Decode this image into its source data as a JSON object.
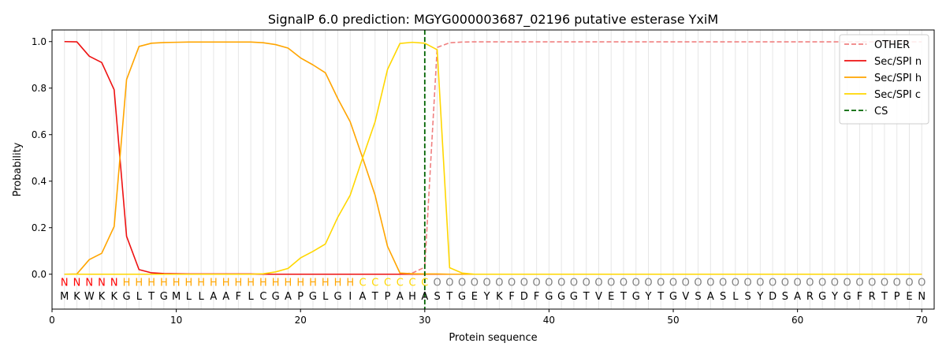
{
  "chart_data": {
    "type": "line",
    "title": "SignalP 6.0 prediction: MGYG000003687_02196 putative esterase YxiM",
    "xlabel": "Protein sequence",
    "ylabel": "Probability",
    "xlim": [
      0,
      71
    ],
    "ylim": [
      -0.15,
      1.05
    ],
    "x_ticks": [
      0,
      10,
      20,
      30,
      40,
      50,
      60,
      70
    ],
    "y_ticks": [
      0.0,
      0.2,
      0.4,
      0.6,
      0.8,
      1.0
    ],
    "x_tick_labels": [
      "0",
      "10",
      "20",
      "30",
      "40",
      "50",
      "60",
      "70"
    ],
    "y_tick_labels": [
      "0.0",
      "0.2",
      "0.4",
      "0.6",
      "0.8",
      "1.0"
    ],
    "legend_position": "upper right",
    "vertical_grid": true,
    "sequence": [
      "M",
      "K",
      "W",
      "K",
      "K",
      "G",
      "L",
      "T",
      "G",
      "M",
      "L",
      "L",
      "A",
      "A",
      "F",
      "L",
      "C",
      "G",
      "A",
      "P",
      "G",
      "L",
      "G",
      "I",
      "A",
      "T",
      "P",
      "A",
      "H",
      "A",
      "S",
      "T",
      "G",
      "E",
      "Y",
      "K",
      "F",
      "D",
      "F",
      "G",
      "G",
      "G",
      "T",
      "V",
      "E",
      "T",
      "G",
      "Y",
      "T",
      "G",
      "V",
      "S",
      "A",
      "S",
      "L",
      "S",
      "Y",
      "D",
      "S",
      "A",
      "R",
      "G",
      "Y",
      "G",
      "F",
      "R",
      "T",
      "P",
      "E",
      "N"
    ],
    "region_labels": [
      "N",
      "N",
      "N",
      "N",
      "N",
      "H",
      "H",
      "H",
      "H",
      "H",
      "H",
      "H",
      "H",
      "H",
      "H",
      "H",
      "H",
      "H",
      "H",
      "H",
      "H",
      "H",
      "H",
      "H",
      "C",
      "C",
      "C",
      "C",
      "C",
      "C",
      "O",
      "O",
      "O",
      "O",
      "O",
      "O",
      "O",
      "O",
      "O",
      "O",
      "O",
      "O",
      "O",
      "O",
      "O",
      "O",
      "O",
      "O",
      "O",
      "O",
      "O",
      "O",
      "O",
      "O",
      "O",
      "O",
      "O",
      "O",
      "O",
      "O",
      "O",
      "O",
      "O",
      "O",
      "O",
      "O",
      "O",
      "O",
      "O",
      "O"
    ],
    "region_colors": {
      "N": "#ff0000",
      "H": "#ffa500",
      "C": "#ffd700",
      "O": "#808080"
    },
    "cleavage_site": 30,
    "series": [
      {
        "name": "OTHER",
        "color": "#f08080",
        "dash": true,
        "values": [
          0,
          0,
          0,
          0,
          0,
          0,
          0,
          0,
          0,
          0,
          0,
          0,
          0,
          0,
          0,
          0,
          0,
          0,
          0,
          0,
          0,
          0,
          0,
          0,
          0,
          0,
          0,
          0,
          0.005,
          0.03,
          0.975,
          0.995,
          0.998,
          0.999,
          0.999,
          0.999,
          0.999,
          0.999,
          0.999,
          0.999,
          0.999,
          0.999,
          0.999,
          0.999,
          0.999,
          0.999,
          0.999,
          0.999,
          0.999,
          0.999,
          0.999,
          0.999,
          0.999,
          0.999,
          0.999,
          0.999,
          0.999,
          0.999,
          0.999,
          0.999,
          0.999,
          0.999,
          0.999,
          0.999,
          0.999,
          0.999,
          0.999,
          0.999,
          0.999,
          0.999
        ]
      },
      {
        "name": "Sec/SPI n",
        "color": "#ee1111",
        "dash": false,
        "values": [
          1.0,
          0.999,
          0.937,
          0.91,
          0.793,
          0.163,
          0.02,
          0.006,
          0.003,
          0.002,
          0.001,
          0.001,
          0.001,
          0.001,
          0.001,
          0.001,
          0,
          0,
          0,
          0,
          0,
          0,
          0,
          0,
          0,
          0,
          0,
          0,
          0,
          0,
          0,
          0,
          0,
          0,
          0,
          0,
          0,
          0,
          0,
          0,
          0,
          0,
          0,
          0,
          0,
          0,
          0,
          0,
          0,
          0,
          0,
          0,
          0,
          0,
          0,
          0,
          0,
          0,
          0,
          0,
          0,
          0,
          0,
          0,
          0,
          0,
          0,
          0,
          0,
          0
        ]
      },
      {
        "name": "Sec/SPI h",
        "color": "#ffa500",
        "dash": false,
        "values": [
          0,
          0.001,
          0.063,
          0.09,
          0.205,
          0.837,
          0.979,
          0.993,
          0.996,
          0.997,
          0.998,
          0.998,
          0.998,
          0.998,
          0.998,
          0.998,
          0.995,
          0.987,
          0.972,
          0.93,
          0.9,
          0.866,
          0.755,
          0.655,
          0.5,
          0.34,
          0.12,
          0.005,
          0.002,
          0.001,
          0.001,
          0,
          0,
          0,
          0,
          0,
          0,
          0,
          0,
          0,
          0,
          0,
          0,
          0,
          0,
          0,
          0,
          0,
          0,
          0,
          0,
          0,
          0,
          0,
          0,
          0,
          0,
          0,
          0,
          0,
          0,
          0,
          0,
          0,
          0,
          0,
          0,
          0,
          0,
          0
        ]
      },
      {
        "name": "Sec/SPI c",
        "color": "#ffd700",
        "dash": false,
        "values": [
          0,
          0,
          0,
          0,
          0,
          0,
          0,
          0,
          0,
          0,
          0,
          0,
          0,
          0,
          0,
          0,
          0.002,
          0.01,
          0.025,
          0.07,
          0.098,
          0.13,
          0.245,
          0.34,
          0.5,
          0.655,
          0.88,
          0.992,
          0.997,
          0.993,
          0.965,
          0.028,
          0.005,
          0,
          0,
          0,
          0,
          0,
          0,
          0,
          0,
          0,
          0,
          0,
          0,
          0,
          0,
          0,
          0,
          0,
          0,
          0,
          0,
          0,
          0,
          0,
          0,
          0,
          0,
          0,
          0,
          0,
          0,
          0,
          0,
          0,
          0,
          0,
          0,
          0
        ]
      }
    ],
    "cs_legend": {
      "name": "CS",
      "color": "#006400"
    }
  }
}
